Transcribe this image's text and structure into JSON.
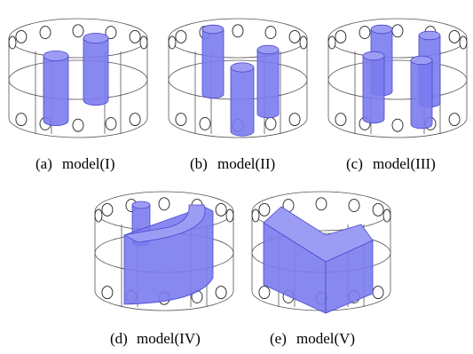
{
  "figures": [
    {
      "label": "(a)",
      "caption": "model(I)"
    },
    {
      "label": "(b)",
      "caption": "model(II)"
    },
    {
      "label": "(c)",
      "caption": "model(III)"
    },
    {
      "label": "(d)",
      "caption": "model(IV)"
    },
    {
      "label": "(e)",
      "caption": "model(V)"
    }
  ]
}
